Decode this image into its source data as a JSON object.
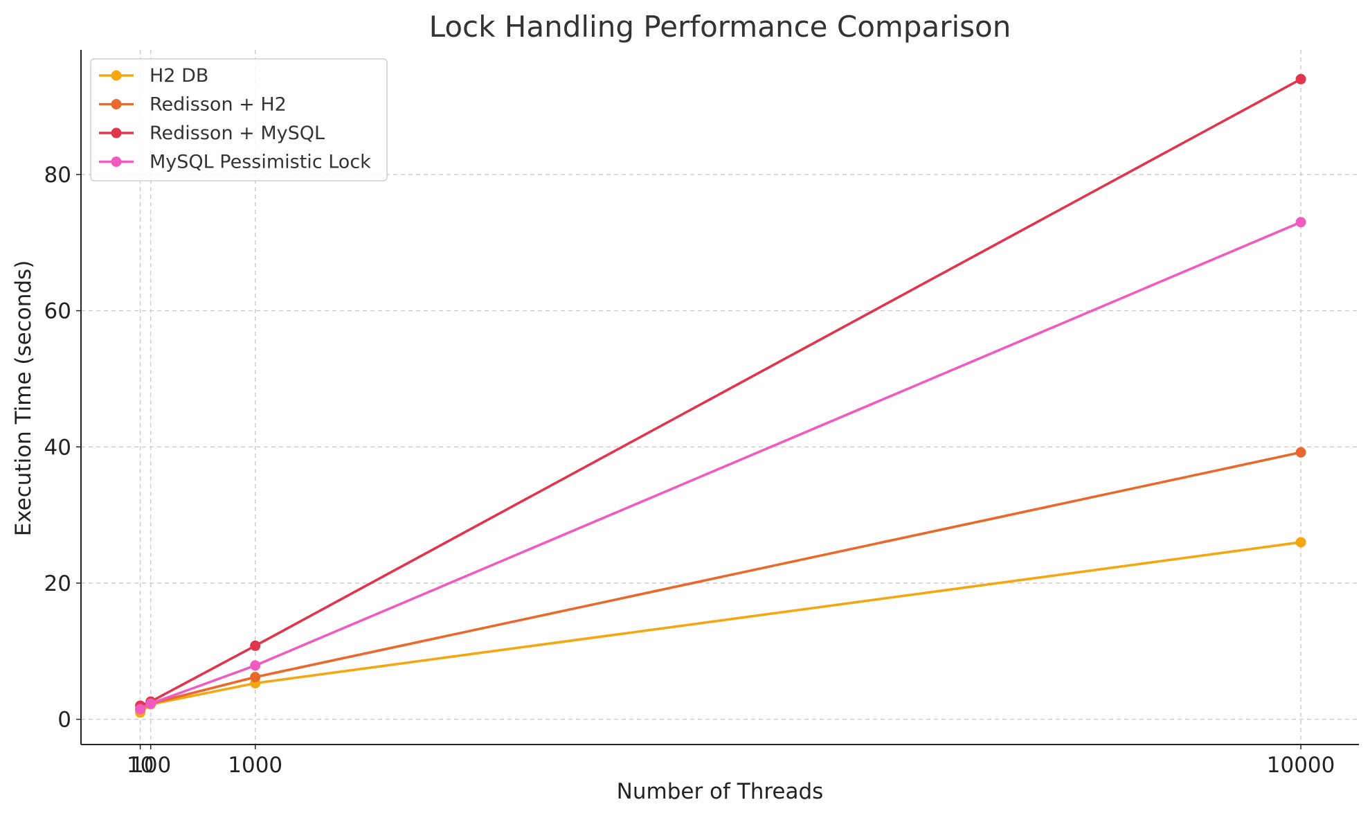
{
  "chart_data": {
    "type": "line",
    "title": "Lock Handling Performance Comparison",
    "xlabel": "Number of Threads",
    "ylabel": "Execution Time (seconds)",
    "x": [
      10,
      100,
      1000,
      10000
    ],
    "x_ticks": [
      10,
      100,
      1000,
      10000
    ],
    "x_tick_labels": [
      "10",
      "100",
      "1000",
      "10000"
    ],
    "y_ticks": [
      0,
      20,
      40,
      60,
      80
    ],
    "y_tick_labels": [
      "0",
      "20",
      "40",
      "60",
      "80"
    ],
    "xlim": [
      -500,
      10500
    ],
    "ylim": [
      -3.7,
      98.3
    ],
    "grid": true,
    "legend_position": "top-left",
    "series": [
      {
        "name": "H2 DB",
        "color": "#f5a711",
        "values": [
          1.0,
          2.2,
          5.3,
          26.0
        ]
      },
      {
        "name": "Redisson + H2",
        "color": "#e8692b",
        "values": [
          1.5,
          2.3,
          6.2,
          39.2
        ]
      },
      {
        "name": "Redisson + MySQL",
        "color": "#e0354d",
        "values": [
          2.0,
          2.6,
          10.8,
          94.0
        ]
      },
      {
        "name": "MySQL Pessimistic Lock",
        "color": "#f05bc0",
        "values": [
          1.5,
          2.3,
          7.9,
          73.0
        ]
      }
    ]
  }
}
